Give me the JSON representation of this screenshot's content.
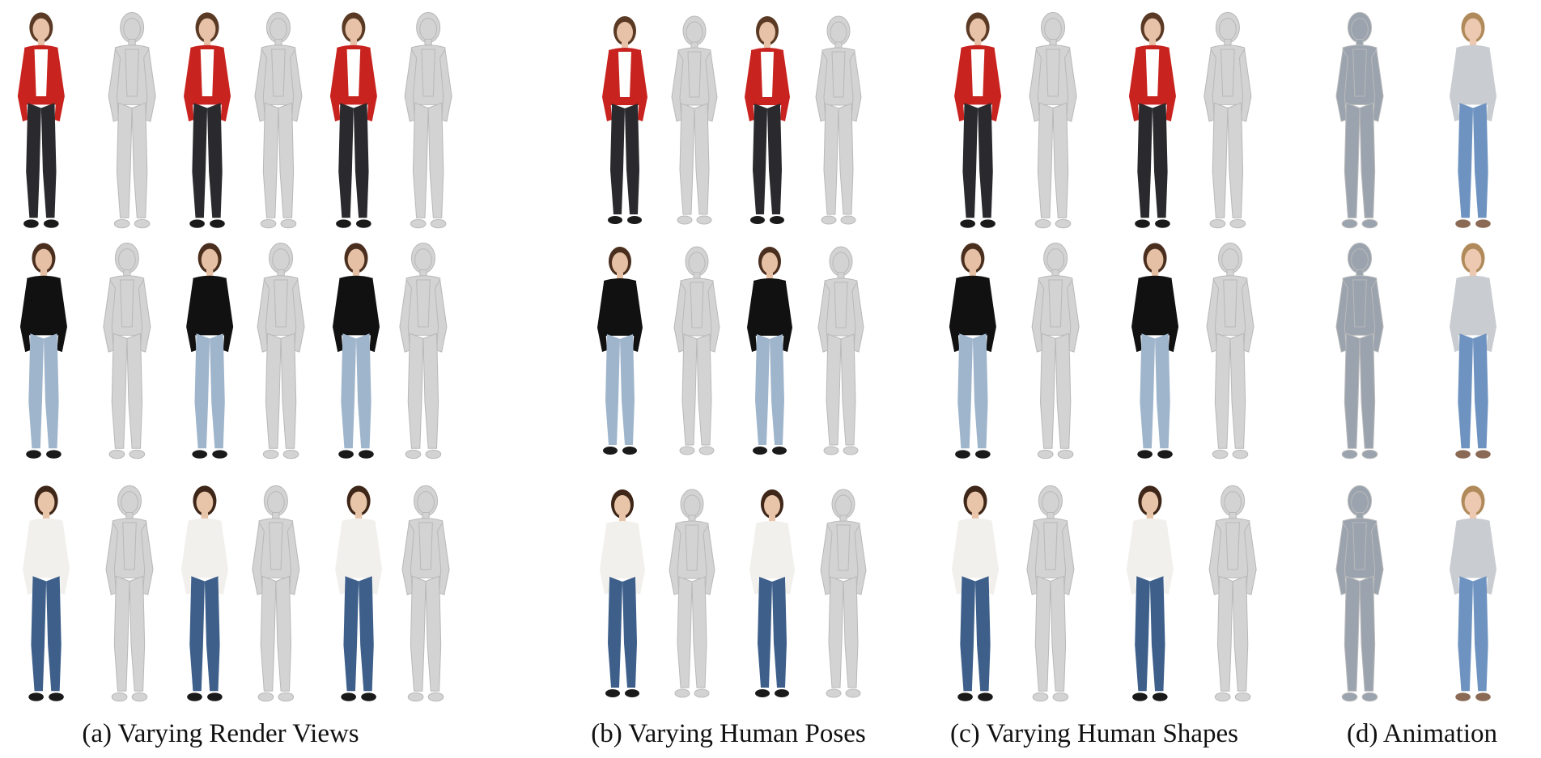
{
  "figure": {
    "captions": {
      "a": "(a) Varying Render Views",
      "b": "(b) Varying Human Poses",
      "c": "(c) Varying Human Shapes",
      "d": "(d) Animation"
    },
    "rows": [
      {
        "subject": "woman-red-cardigan",
        "colors": {
          "top": "#c8231f",
          "inner": "#ffffff",
          "bottom": "#2a2a2e",
          "shoes": "#1a1a1a",
          "hair": "#5a3a24",
          "skin": "#e8c2a8"
        }
      },
      {
        "subject": "woman-black-top-jeans",
        "colors": {
          "top": "#111111",
          "inner": "#111111",
          "bottom": "#9fb5cc",
          "shoes": "#1a1a1a",
          "hair": "#4a2e1e",
          "skin": "#e6c0a4"
        }
      },
      {
        "subject": "woman-white-crop-wide-jeans",
        "colors": {
          "top": "#f2f0ec",
          "inner": "#f2f0ec",
          "bottom": "#3d5f8a",
          "shoes": "#1a1a1a",
          "hair": "#3e2618",
          "skin": "#e8c4a8"
        }
      }
    ],
    "mesh_color": "#d3d3d3",
    "smpl_color": "#9aa3ae"
  }
}
